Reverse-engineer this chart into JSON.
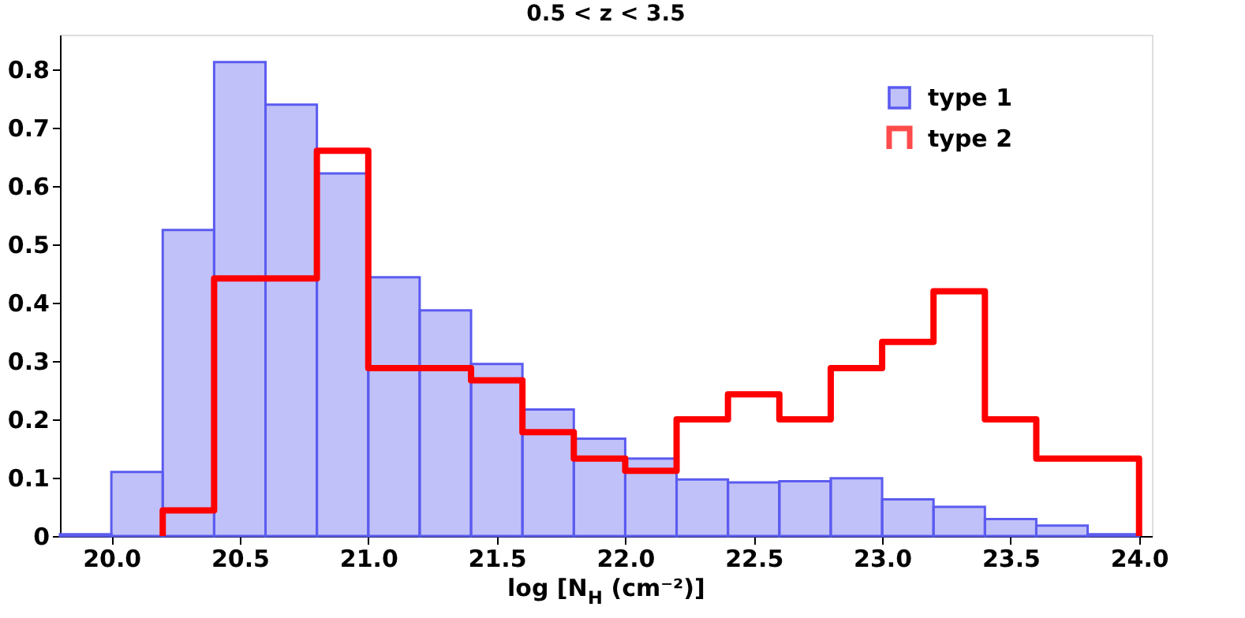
{
  "chart_data": {
    "type": "histogram",
    "title": "0.5 < z < 3.5",
    "xlabel": "log [N$_{H}$ (cm⁻²)]",
    "bins": [
      19.8,
      20.0,
      20.2,
      20.4,
      20.6,
      20.8,
      21.0,
      21.2,
      21.4,
      21.6,
      21.8,
      22.0,
      22.2,
      22.4,
      22.6,
      22.8,
      23.0,
      23.2,
      23.4,
      23.6,
      23.8,
      24.0
    ],
    "series": [
      {
        "name": "type 1",
        "color": "#5b5bf0",
        "values": [
          0.003,
          0.11,
          0.525,
          0.813,
          0.74,
          0.622,
          0.444,
          0.387,
          0.295,
          0.217,
          0.167,
          0.133,
          0.097,
          0.092,
          0.094,
          0.099,
          0.063,
          0.05,
          0.029,
          0.018,
          0.003
        ]
      },
      {
        "name": "type 2",
        "color": "#ff0000",
        "type": "step",
        "x": [
          20.2,
          20.2,
          20.4,
          20.6,
          20.8,
          21.0,
          21.2,
          21.4,
          21.6,
          21.8,
          22.0,
          22.2,
          22.4,
          22.6,
          22.8,
          23.0,
          23.2,
          23.4,
          23.6,
          23.8,
          24.0,
          24.0
        ],
        "values": [
          0,
          0.044,
          0.442,
          0.442,
          0.661,
          0.288,
          0.288,
          0.267,
          0.178,
          0.133,
          0.112,
          0.2,
          0.243,
          0.2,
          0.288,
          0.333,
          0.42,
          0.2,
          0.133,
          0.133,
          0.133,
          0
        ]
      }
    ],
    "xlim": [
      19.8,
      24.05
    ],
    "xticks": [
      {
        "value": 20.0,
        "label": "20.0"
      },
      {
        "value": 20.5,
        "label": "20.5"
      },
      {
        "value": 21.0,
        "label": "21.0"
      },
      {
        "value": 21.5,
        "label": "21.5"
      },
      {
        "value": 22.0,
        "label": "22.0"
      },
      {
        "value": 22.5,
        "label": "22.5"
      },
      {
        "value": 23.0,
        "label": "23.0"
      },
      {
        "value": 23.5,
        "label": "23.5"
      },
      {
        "value": 24.0,
        "label": "24.0"
      }
    ],
    "ylim": [
      0,
      0.86
    ],
    "yticks": [
      0,
      0.1,
      0.2,
      0.3,
      0.4,
      0.5,
      0.6,
      0.7,
      0.8
    ],
    "grid": false,
    "legend": "top right"
  }
}
